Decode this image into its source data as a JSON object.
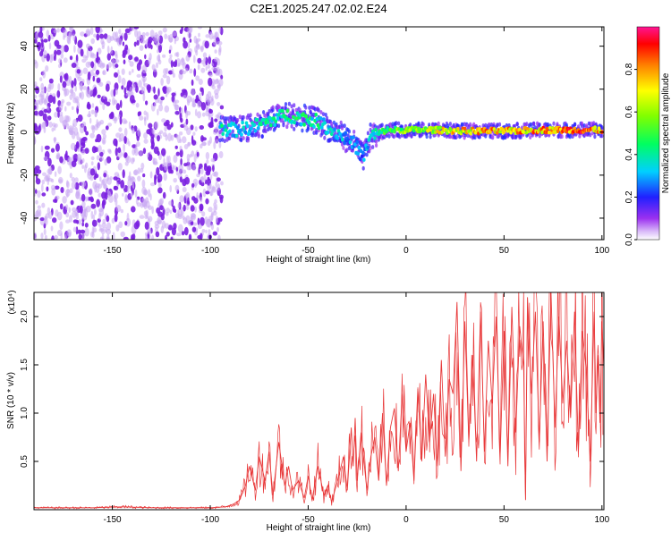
{
  "title": "C2E1.2025.247.02.02.E24",
  "colors": {
    "snr_line": "#e8393a",
    "scatter_dot": "#7a1fe0",
    "scatter_dot_light": "#c9a8f2"
  },
  "chart_data": [
    {
      "type": "heatmap",
      "name": "spectrogram",
      "xlabel": "Height of straight line (km)",
      "ylabel": "Frequency (Hz)",
      "xlim": [
        -190,
        101
      ],
      "ylim": [
        -50,
        49
      ],
      "xticks": [
        -150,
        -100,
        -50,
        0,
        50,
        100
      ],
      "yticks": [
        -40,
        -20,
        0,
        20,
        40
      ],
      "xtick_labels": [
        "-150",
        "-100",
        "-50",
        "0",
        "50",
        "100"
      ],
      "ytick_labels": [
        "-40",
        "-20",
        "0",
        "20",
        "40"
      ],
      "noise_region_x": [
        -190,
        -94
      ],
      "ridge_points": [
        {
          "x": -95,
          "y": 2,
          "amp": 0.45
        },
        {
          "x": -88,
          "y": 1,
          "amp": 0.35
        },
        {
          "x": -80,
          "y": 2,
          "amp": 0.4
        },
        {
          "x": -70,
          "y": 5,
          "amp": 0.45
        },
        {
          "x": -62,
          "y": 8,
          "amp": 0.45
        },
        {
          "x": -55,
          "y": 7,
          "amp": 0.5
        },
        {
          "x": -45,
          "y": 5,
          "amp": 0.45
        },
        {
          "x": -38,
          "y": 1,
          "amp": 0.4
        },
        {
          "x": -32,
          "y": -2,
          "amp": 0.35
        },
        {
          "x": -26,
          "y": -6,
          "amp": 0.3
        },
        {
          "x": -22,
          "y": -12,
          "amp": 0.3
        },
        {
          "x": -18,
          "y": -2,
          "amp": 0.4
        },
        {
          "x": -10,
          "y": 1,
          "amp": 0.55
        },
        {
          "x": 0,
          "y": 1,
          "amp": 0.65
        },
        {
          "x": 15,
          "y": 1,
          "amp": 0.75
        },
        {
          "x": 30,
          "y": 0.5,
          "amp": 0.85
        },
        {
          "x": 50,
          "y": 0.5,
          "amp": 0.9
        },
        {
          "x": 70,
          "y": 1,
          "amp": 0.9
        },
        {
          "x": 90,
          "y": 1,
          "amp": 0.95
        },
        {
          "x": 100,
          "y": 1,
          "amp": 0.9
        }
      ],
      "colorbar": {
        "label": "Normalized spectral amplitude",
        "range": [
          0,
          1
        ],
        "ticks": [
          0.0,
          0.2,
          0.4,
          0.6,
          0.8
        ],
        "tick_labels": [
          "0.0",
          "0.2",
          "0.4",
          "0.6",
          "0.8"
        ]
      }
    },
    {
      "type": "line",
      "name": "snr",
      "xlabel": "Height of straight line (km)",
      "ylabel": "SNR (10 * v/v)",
      "multiplier_label": "(x10⁴)",
      "xlim": [
        -190,
        101
      ],
      "ylim": [
        0,
        2.25
      ],
      "xticks": [
        -150,
        -100,
        -50,
        0,
        50,
        100
      ],
      "yticks": [
        0.5,
        1.0,
        1.5,
        2.0
      ],
      "xtick_labels": [
        "-150",
        "-100",
        "-50",
        "0",
        "50",
        "100"
      ],
      "ytick_labels": [
        "0.5",
        "1.0",
        "1.5",
        "2.0"
      ],
      "series": [
        {
          "name": "SNR",
          "x": [
            -190,
            -175,
            -160,
            -145,
            -130,
            -115,
            -100,
            -92,
            -88,
            -85,
            -82,
            -80,
            -77,
            -75,
            -72,
            -70,
            -68,
            -65,
            -62,
            -60,
            -58,
            -55,
            -52,
            -50,
            -48,
            -45,
            -42,
            -40,
            -38,
            -35,
            -32,
            -30,
            -28,
            -27,
            -26,
            -25,
            -23,
            -20,
            -18,
            -16,
            -14,
            -12,
            -10,
            -8,
            -6,
            -4,
            -2,
            0,
            2,
            4,
            6,
            8,
            10,
            12,
            14,
            16,
            18,
            20,
            22,
            24,
            26,
            28,
            30,
            32,
            34,
            36,
            38,
            40,
            42,
            44,
            46,
            48,
            50,
            52,
            54,
            56,
            58,
            60,
            61,
            62,
            64,
            66,
            68,
            70,
            72,
            74,
            76,
            78,
            80,
            82,
            84,
            86,
            88,
            90,
            92,
            94,
            96,
            97,
            98,
            99,
            100,
            101
          ],
          "values": [
            0.02,
            0.02,
            0.02,
            0.03,
            0.02,
            0.02,
            0.02,
            0.03,
            0.06,
            0.1,
            0.25,
            0.45,
            0.2,
            0.55,
            0.3,
            0.6,
            0.15,
            0.7,
            0.25,
            0.45,
            0.2,
            0.3,
            0.12,
            0.35,
            0.1,
            0.45,
            0.15,
            0.25,
            0.08,
            0.3,
            0.55,
            0.2,
            0.85,
            0.45,
            0.95,
            0.3,
            0.8,
            0.2,
            0.55,
            0.75,
            0.3,
            1.0,
            0.25,
            0.85,
            1.05,
            0.4,
            1.2,
            0.6,
            0.9,
            0.3,
            1.25,
            0.5,
            1.4,
            0.7,
            1.2,
            0.45,
            1.55,
            0.55,
            1.35,
            1.2,
            2.15,
            0.4,
            1.95,
            0.7,
            1.6,
            0.5,
            2.05,
            0.6,
            1.75,
            1.1,
            2.0,
            0.55,
            1.85,
            0.45,
            2.1,
            0.8,
            1.9,
            1.5,
            0.1,
            2.2,
            1.2,
            2.05,
            0.7,
            1.95,
            0.5,
            2.25,
            0.85,
            2.0,
            1.1,
            1.75,
            0.95,
            2.05,
            0.6,
            1.85,
            1.45,
            0.5,
            2.05,
            1.0,
            1.6,
            0.9,
            1.95,
            1.45
          ]
        }
      ]
    }
  ]
}
